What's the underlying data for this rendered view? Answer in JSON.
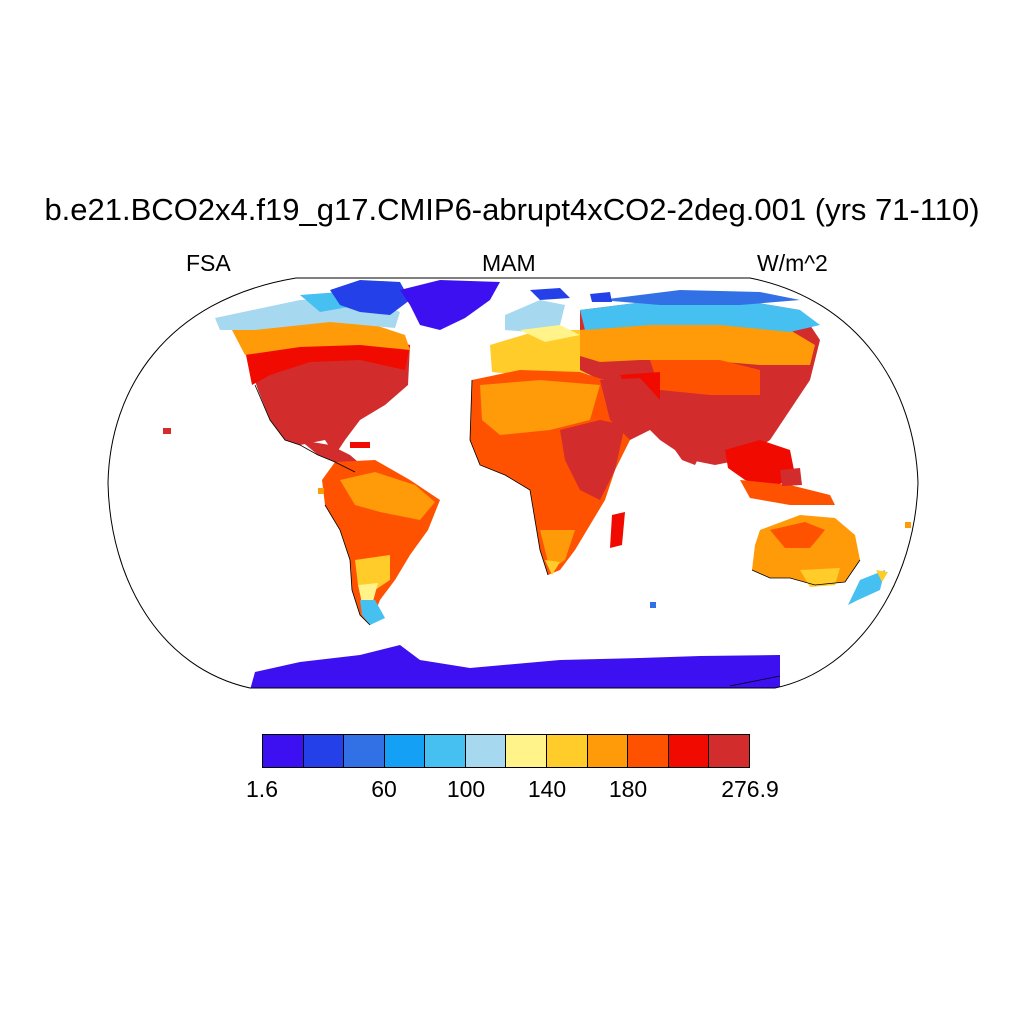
{
  "title": "b.e21.BCO2x4.f19_g17.CMIP6-abrupt4xCO2-2deg.001 (yrs 71-110)",
  "left_label": "FSA",
  "center_label": "MAM",
  "right_label": "W/m^2",
  "colorbar": {
    "colors": [
      "#3c10f0",
      "#2440e8",
      "#3270e6",
      "#14a0f4",
      "#46c0f0",
      "#a6d8f0",
      "#fff38a",
      "#ffcc2a",
      "#ff9a08",
      "#ff5200",
      "#f00a00",
      "#d22c2c"
    ],
    "labels": [
      "1.6",
      "60",
      "100",
      "140",
      "180",
      "276.9"
    ]
  },
  "map": {
    "projection": "Robinson",
    "field": "FSA",
    "season": "MAM"
  }
}
